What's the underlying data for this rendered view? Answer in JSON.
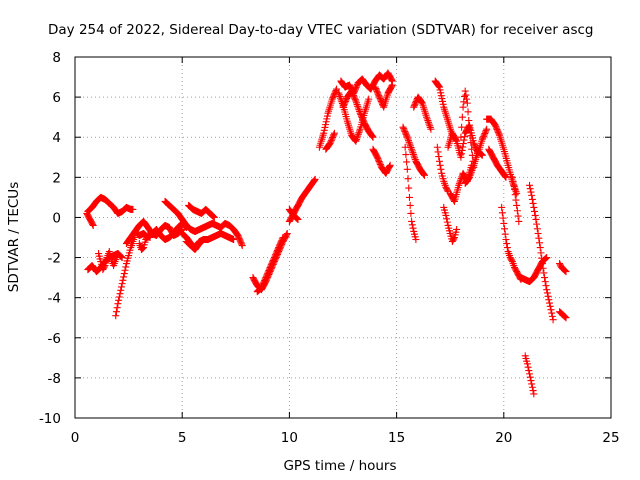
{
  "chart_data": {
    "type": "scatter",
    "title": "Day 254 of 2022, Sidereal Day-to-day VTEC variation (SDTVAR) for receiver ascg",
    "xlabel": "GPS time / hours",
    "ylabel": "SDTVAR / TECUs",
    "xlim": [
      0,
      25
    ],
    "ylim": [
      -10,
      8
    ],
    "x_ticks": [
      0,
      5,
      10,
      15,
      20,
      25
    ],
    "y_ticks": [
      -10,
      -8,
      -6,
      -4,
      -2,
      0,
      2,
      4,
      6,
      8
    ],
    "grid": true,
    "marker": "+",
    "series": [
      {
        "name": "SDTVAR",
        "color": "#ff0000",
        "tracks": [
          {
            "x": [
              0.6,
              0.8,
              1.0,
              1.2,
              1.4,
              1.6,
              1.8,
              2.0
            ],
            "y": [
              0.3,
              0.5,
              0.8,
              1.0,
              0.9,
              0.7,
              0.5,
              0.2
            ]
          },
          {
            "x": [
              2.0,
              2.2,
              2.4,
              2.6,
              2.7
            ],
            "y": [
              0.2,
              0.3,
              0.5,
              0.4,
              0.4
            ]
          },
          {
            "x": [
              0.55,
              0.7,
              0.85
            ],
            "y": [
              0.2,
              -0.1,
              -0.4
            ]
          },
          {
            "x": [
              0.6,
              0.8,
              1.0,
              1.2,
              1.4,
              1.6,
              1.8,
              2.0,
              2.2
            ],
            "y": [
              -2.6,
              -2.4,
              -2.7,
              -2.5,
              -2.2,
              -2.0,
              -1.9,
              -1.8,
              -2.0
            ]
          },
          {
            "x": [
              1.1,
              1.2,
              1.3,
              1.4,
              1.5,
              1.6,
              1.7,
              1.8,
              1.9,
              2.0
            ],
            "y": [
              -1.8,
              -2.2,
              -2.6,
              -2.4,
              -2.0,
              -1.7,
              -2.1,
              -2.4,
              -2.1,
              -1.8
            ]
          },
          {
            "x": [
              1.9,
              2.0,
              2.1,
              2.2,
              2.3,
              2.4,
              2.5,
              2.6,
              2.7,
              2.8
            ],
            "y": [
              -4.9,
              -4.3,
              -3.8,
              -3.3,
              -2.8,
              -2.3,
              -1.9,
              -1.5,
              -1.2,
              -0.9
            ]
          },
          {
            "x": [
              2.4,
              2.6,
              2.8,
              3.0,
              3.2,
              3.4,
              3.6,
              3.8,
              4.0,
              4.2,
              4.4,
              4.6,
              4.8,
              5.0
            ],
            "y": [
              -1.3,
              -1.0,
              -0.7,
              -0.4,
              -0.2,
              -0.5,
              -0.8,
              -0.9,
              -0.6,
              -0.4,
              -0.5,
              -0.9,
              -0.8,
              -0.6
            ]
          },
          {
            "x": [
              2.8,
              3.0,
              3.2,
              3.4,
              3.6,
              3.8,
              4.0,
              4.2,
              4.4,
              4.6,
              4.8,
              5.0,
              5.2
            ],
            "y": [
              -0.7,
              -0.9,
              -0.8,
              -1.0,
              -0.8,
              -0.6,
              -0.9,
              -1.1,
              -1.0,
              -0.8,
              -0.5,
              -0.3,
              -0.5
            ]
          },
          {
            "x": [
              3.0,
              3.1,
              3.2,
              3.3,
              3.4,
              3.5
            ],
            "y": [
              -1.3,
              -1.6,
              -1.5,
              -1.1,
              -0.9,
              -1.0
            ]
          },
          {
            "x": [
              4.2,
              4.4,
              4.6,
              4.8,
              5.0,
              5.2,
              5.4,
              5.6,
              5.8,
              6.0,
              6.2,
              6.4,
              6.6,
              6.8,
              7.0,
              7.2,
              7.4,
              7.6,
              7.8
            ],
            "y": [
              0.8,
              0.6,
              0.4,
              0.2,
              -0.1,
              -0.4,
              -0.6,
              -0.7,
              -0.6,
              -0.5,
              -0.4,
              -0.3,
              -0.4,
              -0.5,
              -0.3,
              -0.4,
              -0.6,
              -0.9,
              -1.4
            ]
          },
          {
            "x": [
              5.0,
              5.2,
              5.4,
              5.6,
              5.8,
              6.0,
              6.2,
              6.4,
              6.6,
              6.8,
              7.0,
              7.2,
              7.4
            ],
            "y": [
              -0.8,
              -1.0,
              -1.3,
              -1.5,
              -1.2,
              -1.1,
              -1.1,
              -1.0,
              -0.9,
              -0.8,
              -0.9,
              -1.0,
              -1.1
            ]
          },
          {
            "x": [
              5.3,
              5.5,
              5.7,
              5.9,
              6.1,
              6.3,
              6.5
            ],
            "y": [
              0.6,
              0.4,
              0.3,
              0.2,
              0.4,
              0.2,
              0.0
            ]
          },
          {
            "x": [
              5.2,
              5.4,
              5.6,
              5.8,
              6.0
            ],
            "y": [
              -1.2,
              -1.4,
              -1.6,
              -1.3,
              -1.1
            ]
          },
          {
            "x": [
              8.3,
              8.5,
              8.7,
              8.9,
              9.1,
              9.3,
              9.5,
              9.7,
              9.9
            ],
            "y": [
              -3.0,
              -3.4,
              -3.6,
              -3.2,
              -2.7,
              -2.2,
              -1.7,
              -1.2,
              -0.8
            ]
          },
          {
            "x": [
              8.5,
              8.7,
              8.9,
              9.1,
              9.3,
              9.5,
              9.7
            ],
            "y": [
              -3.7,
              -3.5,
              -3.0,
              -2.5,
              -2.0,
              -1.5,
              -1.0
            ]
          },
          {
            "x": [
              10.0,
              10.2,
              10.4,
              10.6,
              10.8,
              11.0,
              11.2
            ],
            "y": [
              -0.2,
              0.2,
              0.6,
              1.0,
              1.3,
              1.6,
              1.9
            ]
          },
          {
            "x": [
              10.0,
              10.2,
              10.4
            ],
            "y": [
              0.4,
              0.1,
              -0.1
            ]
          },
          {
            "x": [
              11.4,
              11.6,
              11.8,
              12.0,
              12.2
            ],
            "y": [
              3.5,
              4.2,
              5.2,
              5.9,
              6.4
            ]
          },
          {
            "x": [
              11.7,
              11.9,
              12.1
            ],
            "y": [
              3.4,
              3.7,
              4.2
            ]
          },
          {
            "x": [
              12.3,
              12.5,
              12.7,
              12.9,
              13.1,
              13.3,
              13.5,
              13.7
            ],
            "y": [
              6.2,
              5.6,
              4.8,
              4.1,
              3.8,
              4.4,
              5.2,
              5.9
            ]
          },
          {
            "x": [
              12.4,
              12.6,
              12.8,
              13.0,
              13.2,
              13.4,
              13.6,
              13.8,
              14.0,
              14.2,
              14.4,
              14.6,
              14.8
            ],
            "y": [
              6.8,
              6.5,
              6.6,
              6.2,
              6.7,
              6.9,
              6.6,
              6.4,
              6.8,
              7.1,
              6.9,
              7.2,
              6.8
            ]
          },
          {
            "x": [
              12.5,
              12.7,
              12.9,
              13.1,
              13.3,
              13.5,
              13.7,
              13.9
            ],
            "y": [
              5.5,
              6.0,
              6.3,
              5.8,
              5.2,
              4.7,
              4.3,
              4.0
            ]
          },
          {
            "x": [
              13.9,
              14.1,
              14.3,
              14.5,
              14.7
            ],
            "y": [
              3.4,
              3.0,
              2.5,
              2.2,
              2.6
            ]
          },
          {
            "x": [
              14.0,
              14.2,
              14.4,
              14.6,
              14.8
            ],
            "y": [
              6.5,
              6.0,
              5.5,
              6.2,
              6.6
            ]
          },
          {
            "x": [
              15.3,
              15.5,
              15.7,
              15.9,
              16.1,
              16.3
            ],
            "y": [
              4.5,
              4.0,
              3.4,
              2.8,
              2.4,
              2.1
            ]
          },
          {
            "x": [
              15.4,
              15.5,
              15.6,
              15.7,
              15.8,
              15.9
            ],
            "y": [
              3.5,
              2.4,
              1.0,
              -0.2,
              -0.7,
              -1.1
            ]
          },
          {
            "x": [
              15.8,
              16.0,
              16.2,
              16.4,
              16.6
            ],
            "y": [
              5.5,
              6.0,
              5.7,
              5.0,
              4.4
            ]
          },
          {
            "x": [
              16.8,
              17.0,
              17.2,
              17.4,
              17.6
            ],
            "y": [
              6.8,
              6.5,
              5.5,
              4.8,
              4.1
            ]
          },
          {
            "x": [
              16.9,
              17.0,
              17.1,
              17.2,
              17.3,
              17.4
            ],
            "y": [
              3.5,
              2.8,
              2.2,
              1.8,
              1.5,
              1.3
            ]
          },
          {
            "x": [
              17.2,
              17.3,
              17.4,
              17.5,
              17.6,
              17.7,
              17.8
            ],
            "y": [
              0.5,
              0.1,
              -0.4,
              -0.8,
              -1.2,
              -1.0,
              -0.6
            ]
          },
          {
            "x": [
              17.4,
              17.6,
              17.8,
              18.0,
              18.2,
              18.4,
              18.6,
              18.8,
              19.0,
              19.2
            ],
            "y": [
              3.5,
              4.2,
              3.8,
              3.0,
              4.2,
              4.6,
              3.7,
              3.2,
              3.9,
              4.4
            ]
          },
          {
            "x": [
              17.5,
              17.7,
              17.9,
              18.1,
              18.3,
              18.5
            ],
            "y": [
              1.2,
              0.8,
              1.6,
              2.2,
              1.8,
              2.6
            ]
          },
          {
            "x": [
              18.0,
              18.1,
              18.2,
              18.3,
              18.4,
              18.5,
              18.6
            ],
            "y": [
              4.0,
              5.5,
              6.3,
              5.7,
              4.4,
              3.4,
              2.5
            ]
          },
          {
            "x": [
              18.2,
              18.4,
              18.6,
              18.8,
              19.0
            ],
            "y": [
              1.7,
              2.0,
              2.6,
              3.3,
              3.1
            ]
          },
          {
            "x": [
              19.2,
              19.4,
              19.6,
              19.8,
              20.0,
              20.2,
              20.4,
              20.6
            ],
            "y": [
              4.9,
              4.9,
              4.6,
              4.1,
              3.4,
              2.6,
              1.8,
              1.2
            ]
          },
          {
            "x": [
              19.3,
              19.5,
              19.7,
              19.9,
              20.1
            ],
            "y": [
              3.4,
              3.0,
              2.6,
              2.3,
              2.0
            ]
          },
          {
            "x": [
              19.9,
              20.0,
              20.1,
              20.2,
              20.3,
              20.4,
              20.5,
              20.6,
              20.7,
              20.8
            ],
            "y": [
              0.5,
              -0.3,
              -1.1,
              -1.7,
              -2.0,
              -2.2,
              -2.5,
              -2.7,
              -2.9,
              -3.1
            ]
          },
          {
            "x": [
              20.4,
              20.5,
              20.6,
              20.7
            ],
            "y": [
              2.0,
              1.4,
              0.6,
              -0.2
            ]
          },
          {
            "x": [
              20.8,
              21.0,
              21.2,
              21.4,
              21.6,
              21.8,
              22.0
            ],
            "y": [
              -3.0,
              -3.1,
              -3.2,
              -3.0,
              -2.6,
              -2.2,
              -2.0
            ]
          },
          {
            "x": [
              21.2,
              21.3,
              21.4,
              21.5,
              21.6,
              21.7,
              21.8,
              21.9,
              22.0,
              22.1,
              22.2,
              22.3
            ],
            "y": [
              1.6,
              1.1,
              0.5,
              -0.1,
              -0.8,
              -1.5,
              -2.3,
              -3.0,
              -3.6,
              -4.1,
              -4.6,
              -5.1
            ]
          },
          {
            "x": [
              21.0,
              21.1,
              21.2,
              21.3,
              21.4
            ],
            "y": [
              -6.9,
              -7.3,
              -7.8,
              -8.3,
              -8.8
            ]
          },
          {
            "x": [
              22.6,
              22.7,
              22.8,
              22.9
            ],
            "y": [
              -2.3,
              -2.5,
              -2.6,
              -2.7
            ]
          },
          {
            "x": [
              22.6,
              22.7,
              22.8,
              22.9
            ],
            "y": [
              -4.7,
              -4.8,
              -4.9,
              -5.0
            ]
          }
        ]
      }
    ]
  }
}
